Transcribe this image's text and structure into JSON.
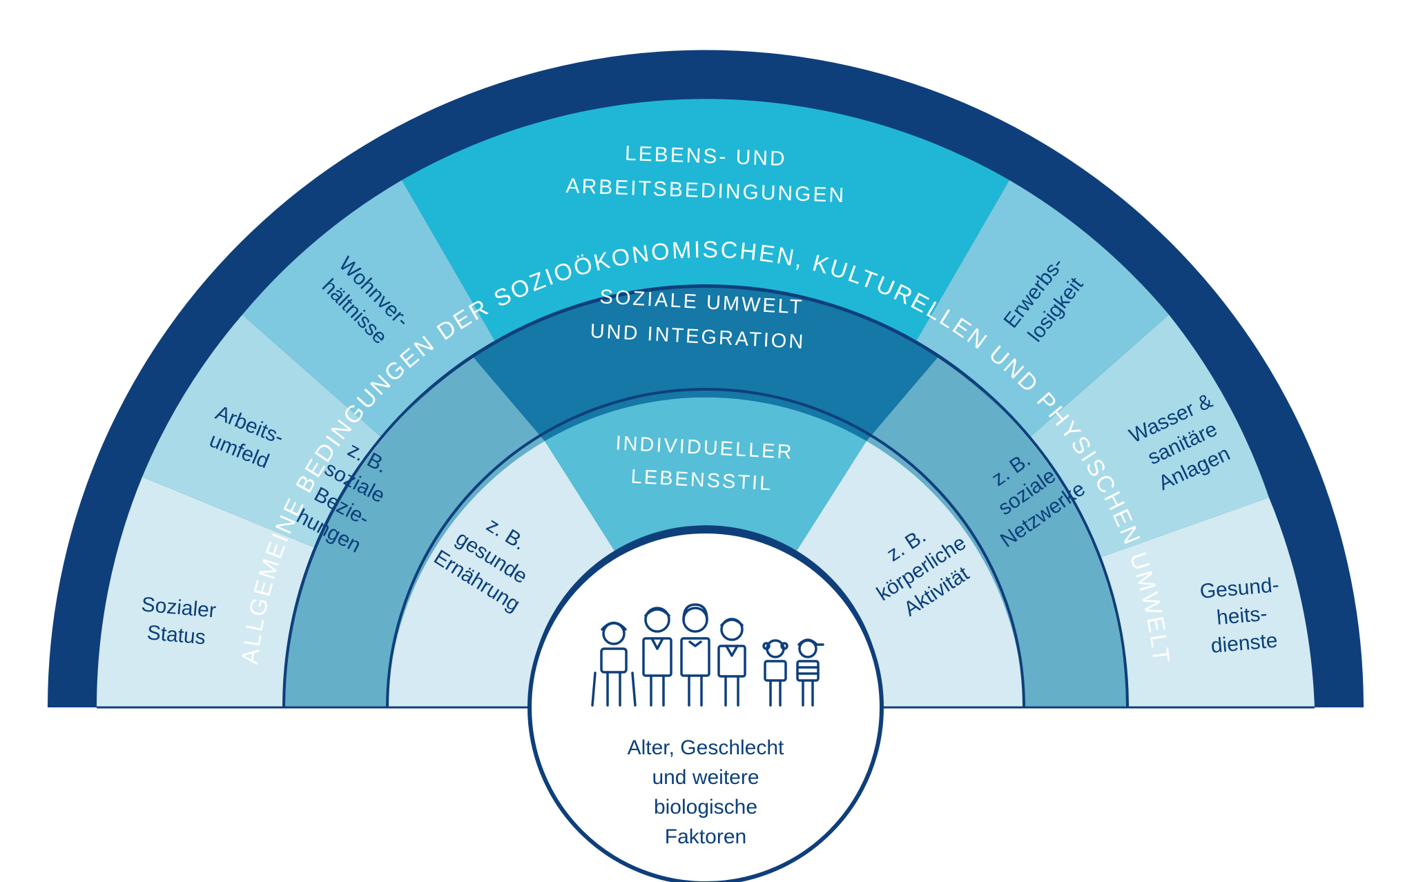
{
  "colors": {
    "outer": "#0e3f7b",
    "upper_band": "#20b7d6",
    "upper_side_a": "#7ec9df",
    "upper_side_b": "#a9dae8",
    "upper_side_c": "#d3eaf2",
    "middle_band": "#1578a6",
    "middle_side": "#65afc8",
    "inner_band": "#56bed7",
    "inner_side": "#d5eaf2",
    "dark_text": "#0b3f7a",
    "white": "#ffffff"
  },
  "outer_arc": {
    "text": "ALLGEMEINE BEDINGUNGEN DER SOZIOÖKONOMISCHEN, KULTURELLEN UND PHYSISCHEN UMWELT"
  },
  "layer_living": {
    "title_line1": "LEBENS- UND",
    "title_line2": "ARBEITSBEDINGUNGEN",
    "left_items": [
      [
        "Sozialer",
        "Status"
      ],
      [
        "Arbeits-",
        "umfeld"
      ],
      [
        "Wohnver-",
        "hältnisse"
      ]
    ],
    "right_items": [
      [
        "Erwerbs-",
        "losigkeit"
      ],
      [
        "Wasser &",
        "sanitäre",
        "Anlagen"
      ],
      [
        "Gesund-",
        "heits-",
        "dienste"
      ]
    ]
  },
  "layer_social": {
    "title_line1": "SOZIALE UMWELT",
    "title_line2": "UND INTEGRATION",
    "left": [
      "z. B.",
      "soziale",
      "Bezie-",
      "hungen"
    ],
    "right": [
      "z. B.",
      "soziale",
      "Netzwerke"
    ]
  },
  "layer_individual": {
    "title_line1": "INDIVIDUELLER",
    "title_line2": "LEBENSSTIL",
    "left": [
      "z. B.",
      "gesunde",
      "Ernährung"
    ],
    "right": [
      "z. B.",
      "körperliche",
      "Aktivität"
    ]
  },
  "center": {
    "lines": [
      "Alter, Geschlecht",
      "und weitere",
      "biologische",
      "Faktoren"
    ],
    "icon": "family-people-icon"
  }
}
